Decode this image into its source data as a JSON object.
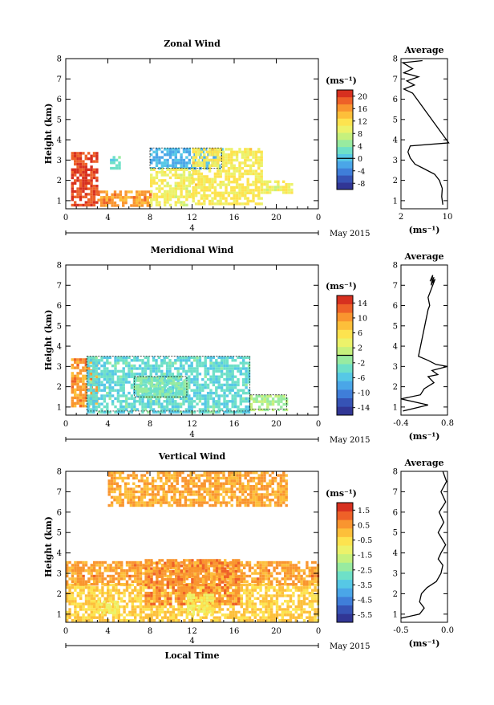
{
  "colormap": [
    "#313695",
    "#3653b5",
    "#3f7ed9",
    "#4aa6e8",
    "#56c8e6",
    "#6ee0c8",
    "#98eba0",
    "#c6f17d",
    "#ecf26a",
    "#fde34f",
    "#fdbf3a",
    "#f9952f",
    "#ee6128",
    "#d7301f"
  ],
  "chart_data": [
    {
      "type": "heatmap",
      "title": "Zonal Wind",
      "ylabel": "Height (km)",
      "x_ticks": [
        "0",
        "4",
        "8",
        "12",
        "16",
        "20",
        "0"
      ],
      "y_ticks": [
        "1",
        "2",
        "3",
        "4",
        "5",
        "6",
        "7",
        "8"
      ],
      "xlim": [
        0,
        24
      ],
      "ylim": [
        0.6,
        8
      ],
      "date_bar": {
        "label": "4",
        "month": "May 2015"
      },
      "colorbar": {
        "unit": "(ms⁻¹)",
        "ticks": [
          "20",
          "16",
          "12",
          "8",
          "4",
          "0",
          "-4",
          "-8"
        ],
        "range": [
          -10,
          22
        ],
        "contour_level": 0
      },
      "regions": [
        {
          "x": [
            0.5,
            3.0
          ],
          "y": [
            0.8,
            3.4
          ],
          "value": 20
        },
        {
          "x": [
            3.0,
            8.0
          ],
          "y": [
            0.8,
            1.5
          ],
          "value": 16
        },
        {
          "x": [
            4.2,
            5.2
          ],
          "y": [
            2.6,
            3.2
          ],
          "value": 2
        },
        {
          "x": [
            8.0,
            14.8
          ],
          "y": [
            2.6,
            3.6
          ],
          "value": -1
        },
        {
          "x": [
            8.0,
            12.0
          ],
          "y": [
            0.8,
            2.6
          ],
          "value": 10
        },
        {
          "x": [
            12.0,
            18.5
          ],
          "y": [
            0.8,
            3.6
          ],
          "value": 11
        },
        {
          "x": [
            18.5,
            21.5
          ],
          "y": [
            1.4,
            2.0
          ],
          "value": 10
        }
      ],
      "profile": {
        "title": "Average",
        "xlabel": "(ms⁻¹)",
        "x_ticks": [
          "2",
          "10"
        ],
        "xlim": [
          2,
          10
        ],
        "ylim": [
          0.6,
          8
        ],
        "points": [
          [
            5.7,
            7.9
          ],
          [
            2.3,
            7.8
          ],
          [
            4.0,
            7.5
          ],
          [
            2.5,
            7.3
          ],
          [
            5.0,
            7.1
          ],
          [
            3.0,
            6.9
          ],
          [
            4.3,
            6.7
          ],
          [
            2.5,
            6.5
          ],
          [
            4.0,
            6.3
          ],
          [
            10.2,
            3.85
          ],
          [
            3.6,
            3.7
          ],
          [
            3.2,
            3.4
          ],
          [
            3.6,
            3.1
          ],
          [
            4.4,
            2.8
          ],
          [
            5.8,
            2.6
          ],
          [
            7.8,
            2.3
          ],
          [
            8.6,
            2.0
          ],
          [
            9.1,
            1.6
          ],
          [
            9.0,
            1.2
          ],
          [
            9.2,
            0.8
          ]
        ]
      }
    },
    {
      "type": "heatmap",
      "title": "Meridional Wind",
      "ylabel": "Height (km)",
      "x_ticks": [
        "0",
        "4",
        "8",
        "12",
        "16",
        "20",
        "0"
      ],
      "y_ticks": [
        "1",
        "2",
        "3",
        "4",
        "5",
        "6",
        "7",
        "8"
      ],
      "xlim": [
        0,
        24
      ],
      "ylim": [
        0.6,
        8
      ],
      "date_bar": {
        "label": "4",
        "month": "May 2015"
      },
      "colorbar": {
        "unit": "(ms⁻¹)",
        "ticks": [
          "14",
          "10",
          "6",
          "2",
          "-2",
          "-6",
          "-10",
          "-14"
        ],
        "range": [
          -16,
          16
        ],
        "contour_level": 0
      },
      "regions": [
        {
          "x": [
            0.5,
            3.0
          ],
          "y": [
            1.0,
            3.4
          ],
          "value": 10
        },
        {
          "x": [
            2.0,
            17.5
          ],
          "y": [
            0.8,
            3.5
          ],
          "value": -4
        },
        {
          "x": [
            6.5,
            11.5
          ],
          "y": [
            1.5,
            2.5
          ],
          "value": -2
        },
        {
          "x": [
            17.5,
            21.0
          ],
          "y": [
            0.9,
            1.6
          ],
          "value": 0
        }
      ],
      "profile": {
        "title": "Average",
        "xlabel": "(ms⁻¹)",
        "x_ticks": [
          "-0.4",
          "0.8"
        ],
        "xlim": [
          -0.4,
          0.8
        ],
        "ylim": [
          0.6,
          8
        ],
        "points": [
          [
            0.35,
            7.2
          ],
          [
            0.42,
            7.5
          ],
          [
            0.38,
            7.0
          ],
          [
            0.45,
            7.4
          ],
          [
            0.4,
            7.1
          ],
          [
            0.48,
            7.3
          ],
          [
            0.3,
            6.4
          ],
          [
            0.34,
            6.0
          ],
          [
            0.3,
            5.8
          ],
          [
            0.05,
            3.5
          ],
          [
            0.3,
            3.3
          ],
          [
            0.5,
            3.1
          ],
          [
            0.8,
            3.0
          ],
          [
            0.4,
            2.8
          ],
          [
            0.55,
            2.6
          ],
          [
            0.3,
            2.5
          ],
          [
            0.45,
            2.2
          ],
          [
            0.2,
            1.9
          ],
          [
            0.1,
            1.6
          ],
          [
            -0.4,
            1.4
          ],
          [
            0.3,
            1.1
          ],
          [
            -0.35,
            0.8
          ]
        ]
      }
    },
    {
      "type": "heatmap",
      "title": "Vertical Wind",
      "ylabel": "Height (km)",
      "xlabel": "Local Time",
      "x_ticks": [
        "0",
        "4",
        "8",
        "12",
        "16",
        "20",
        "0"
      ],
      "y_ticks": [
        "1",
        "2",
        "3",
        "4",
        "5",
        "6",
        "7",
        "8"
      ],
      "xlim": [
        0,
        24
      ],
      "ylim": [
        0.6,
        8
      ],
      "date_bar": {
        "label": "4",
        "month": "May 2015"
      },
      "colorbar": {
        "unit": "(ms⁻¹)",
        "ticks": [
          "1.5",
          "0.5",
          "-0.5",
          "-1.5",
          "-2.5",
          "-3.5",
          "-4.5",
          "-5.5"
        ],
        "range": [
          -6,
          2
        ],
        "contour_level": null
      },
      "regions": [
        {
          "x": [
            0.0,
            24.0
          ],
          "y": [
            0.7,
            2.5
          ],
          "value": -0.2
        },
        {
          "x": [
            0.0,
            24.0
          ],
          "y": [
            2.5,
            3.6
          ],
          "value": 0.4
        },
        {
          "x": [
            7.5,
            16.5
          ],
          "y": [
            1.5,
            3.7
          ],
          "value": 0.6
        },
        {
          "x": [
            3.0,
            5.0
          ],
          "y": [
            1.0,
            1.8
          ],
          "value": -0.9
        },
        {
          "x": [
            11.5,
            14.0
          ],
          "y": [
            1.0,
            2.0
          ],
          "value": -0.9
        },
        {
          "x": [
            4.0,
            21.0
          ],
          "y": [
            6.3,
            8.0
          ],
          "value": 0.3
        }
      ],
      "profile": {
        "title": "Average",
        "xlabel": "(ms⁻¹)",
        "x_ticks": [
          "-0.5",
          "0.0"
        ],
        "xlim": [
          -0.5,
          0.0
        ],
        "ylim": [
          0.6,
          8
        ],
        "points": [
          [
            -0.5,
            0.8
          ],
          [
            -0.3,
            1.0
          ],
          [
            -0.25,
            1.3
          ],
          [
            -0.3,
            1.6
          ],
          [
            -0.28,
            2.0
          ],
          [
            -0.22,
            2.3
          ],
          [
            -0.12,
            2.6
          ],
          [
            -0.07,
            3.0
          ],
          [
            -0.05,
            3.4
          ],
          [
            -0.1,
            3.7
          ],
          [
            -0.07,
            4.0
          ],
          [
            -0.02,
            4.4
          ],
          [
            -0.1,
            5.0
          ],
          [
            -0.04,
            5.5
          ],
          [
            -0.09,
            6.0
          ],
          [
            -0.02,
            6.5
          ],
          [
            -0.07,
            7.0
          ],
          [
            -0.01,
            7.5
          ],
          [
            -0.05,
            8.0
          ]
        ]
      }
    }
  ]
}
